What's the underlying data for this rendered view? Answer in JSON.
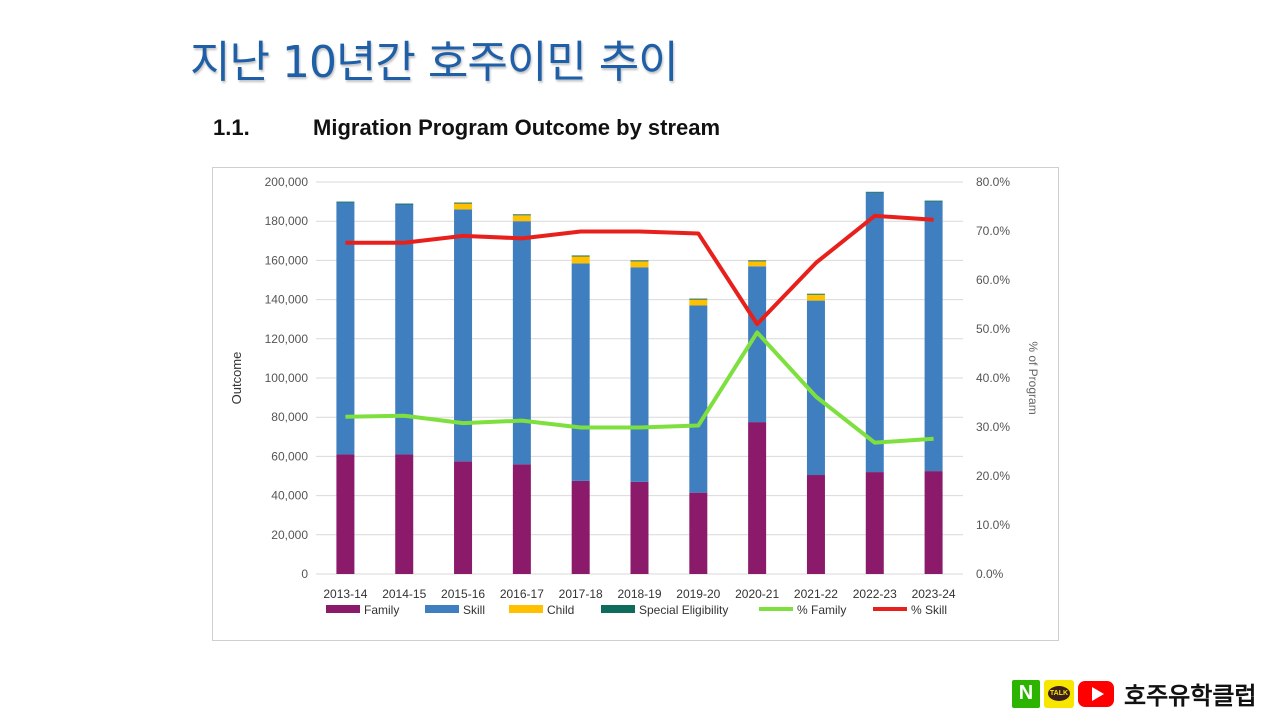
{
  "slide": {
    "title": "지난 10년간 호주이민 추이",
    "figure_number": "1.1.",
    "figure_title": "Migration Program Outcome by stream",
    "brand_text": "호주유학클럽",
    "brand_icons": [
      "naver-icon",
      "kakaotalk-icon",
      "youtube-icon"
    ],
    "talk_label": "TALK",
    "n_label": "N"
  },
  "chart_data": {
    "type": "bar",
    "stacked": true,
    "categories": [
      "2013-14",
      "2014-15",
      "2015-16",
      "2016-17",
      "2017-18",
      "2018-19",
      "2019-20",
      "2020-21",
      "2021-22",
      "2022-23",
      "2023-24"
    ],
    "series": [
      {
        "name": "Family",
        "kind": "bar",
        "color": "#8b1a6b",
        "values": [
          61000,
          61000,
          57500,
          56000,
          47500,
          47000,
          41500,
          77500,
          50500,
          52000,
          52500
        ]
      },
      {
        "name": "Skill",
        "kind": "bar",
        "color": "#3f7fbf",
        "values": [
          128500,
          127500,
          128500,
          124000,
          111000,
          109500,
          95500,
          79500,
          89000,
          142500,
          137500
        ]
      },
      {
        "name": "Child",
        "kind": "bar",
        "color": "#ffc000",
        "values": [
          0,
          0,
          3000,
          3000,
          3500,
          3000,
          3000,
          2500,
          3000,
          0,
          0
        ]
      },
      {
        "name": "Special Eligibility",
        "kind": "bar",
        "color": "#0f6b5c",
        "values": [
          500,
          500,
          500,
          500,
          500,
          500,
          500,
          500,
          500,
          500,
          500
        ]
      },
      {
        "name": "% Family",
        "kind": "line",
        "axis": "right",
        "color": "#7ee03e",
        "values": [
          32.1,
          32.3,
          30.8,
          31.3,
          29.9,
          29.9,
          30.3,
          49.3,
          36.2,
          26.8,
          27.6
        ]
      },
      {
        "name": "% Skill",
        "kind": "line",
        "axis": "right",
        "color": "#e8201c",
        "values": [
          67.6,
          67.6,
          69.0,
          68.5,
          69.9,
          69.9,
          69.5,
          51.0,
          63.5,
          73.1,
          72.3
        ]
      }
    ],
    "ylabel": "Outcome",
    "y2label": "% of Program",
    "ylim": [
      0,
      200000
    ],
    "y2lim": [
      0,
      80
    ],
    "yticks": [
      "0",
      "20,000",
      "40,000",
      "60,000",
      "80,000",
      "100,000",
      "120,000",
      "140,000",
      "160,000",
      "180,000",
      "200,000"
    ],
    "y2ticks": [
      "0.0%",
      "10.0%",
      "20.0%",
      "30.0%",
      "40.0%",
      "50.0%",
      "60.0%",
      "70.0%",
      "80.0%"
    ],
    "grid": true,
    "legend_position": "bottom"
  }
}
